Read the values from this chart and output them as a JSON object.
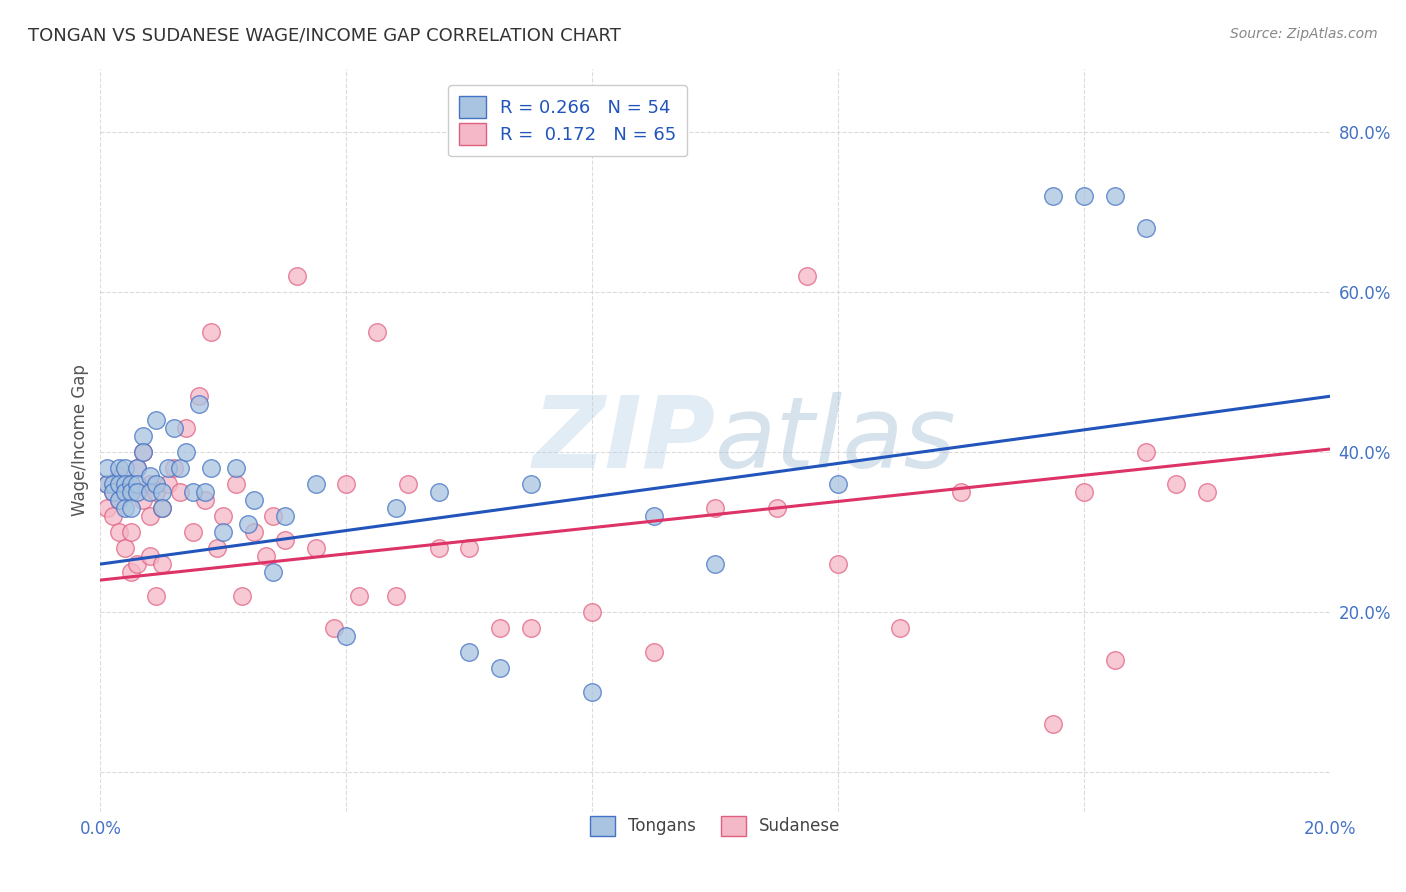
{
  "title": "TONGAN VS SUDANESE WAGE/INCOME GAP CORRELATION CHART",
  "source": "Source: ZipAtlas.com",
  "ylabel": "Wage/Income Gap",
  "xlim": [
    0.0,
    0.2
  ],
  "ylim": [
    -0.05,
    0.88
  ],
  "yticks": [
    0.0,
    0.2,
    0.4,
    0.6,
    0.8
  ],
  "xticks": [
    0.0,
    0.04,
    0.08,
    0.12,
    0.16,
    0.2
  ],
  "tongan_color": "#a8c4e0",
  "sudanese_color": "#f4b8c8",
  "tongan_edge_color": "#4472c4",
  "sudanese_edge_color": "#e06080",
  "tongan_line_color": "#2255bb",
  "sudanese_line_color": "#dd3366",
  "tongan_R": 0.266,
  "tongan_N": 54,
  "sudanese_R": 0.172,
  "sudanese_N": 65,
  "legend_label_tongan": "Tongans",
  "legend_label_sudanese": "Sudanese",
  "background_color": "#ffffff",
  "grid_color": "#cccccc",
  "tongan_x": [
    0.001,
    0.001,
    0.002,
    0.002,
    0.003,
    0.003,
    0.003,
    0.004,
    0.004,
    0.004,
    0.004,
    0.005,
    0.005,
    0.005,
    0.006,
    0.006,
    0.006,
    0.007,
    0.007,
    0.008,
    0.008,
    0.009,
    0.009,
    0.01,
    0.01,
    0.011,
    0.012,
    0.013,
    0.014,
    0.015,
    0.016,
    0.017,
    0.018,
    0.02,
    0.022,
    0.024,
    0.025,
    0.028,
    0.03,
    0.035,
    0.04,
    0.048,
    0.055,
    0.06,
    0.065,
    0.07,
    0.08,
    0.09,
    0.1,
    0.12,
    0.155,
    0.16,
    0.165,
    0.17
  ],
  "tongan_y": [
    0.36,
    0.38,
    0.36,
    0.35,
    0.38,
    0.36,
    0.34,
    0.38,
    0.36,
    0.35,
    0.33,
    0.36,
    0.35,
    0.33,
    0.38,
    0.36,
    0.35,
    0.42,
    0.4,
    0.37,
    0.35,
    0.44,
    0.36,
    0.35,
    0.33,
    0.38,
    0.43,
    0.38,
    0.4,
    0.35,
    0.46,
    0.35,
    0.38,
    0.3,
    0.38,
    0.31,
    0.34,
    0.25,
    0.32,
    0.36,
    0.17,
    0.33,
    0.35,
    0.15,
    0.13,
    0.36,
    0.1,
    0.32,
    0.26,
    0.36,
    0.72,
    0.72,
    0.72,
    0.68
  ],
  "sudanese_x": [
    0.001,
    0.001,
    0.002,
    0.002,
    0.003,
    0.003,
    0.003,
    0.004,
    0.004,
    0.005,
    0.005,
    0.005,
    0.006,
    0.006,
    0.007,
    0.007,
    0.008,
    0.008,
    0.008,
    0.009,
    0.009,
    0.01,
    0.01,
    0.011,
    0.012,
    0.013,
    0.014,
    0.015,
    0.016,
    0.017,
    0.018,
    0.019,
    0.02,
    0.022,
    0.023,
    0.025,
    0.027,
    0.028,
    0.03,
    0.032,
    0.035,
    0.038,
    0.04,
    0.042,
    0.045,
    0.048,
    0.05,
    0.055,
    0.06,
    0.065,
    0.07,
    0.08,
    0.09,
    0.1,
    0.11,
    0.115,
    0.12,
    0.13,
    0.14,
    0.155,
    0.16,
    0.165,
    0.17,
    0.175,
    0.18
  ],
  "sudanese_y": [
    0.36,
    0.33,
    0.35,
    0.32,
    0.37,
    0.34,
    0.3,
    0.35,
    0.28,
    0.36,
    0.3,
    0.25,
    0.38,
    0.26,
    0.4,
    0.34,
    0.36,
    0.32,
    0.27,
    0.35,
    0.22,
    0.33,
    0.26,
    0.36,
    0.38,
    0.35,
    0.43,
    0.3,
    0.47,
    0.34,
    0.55,
    0.28,
    0.32,
    0.36,
    0.22,
    0.3,
    0.27,
    0.32,
    0.29,
    0.62,
    0.28,
    0.18,
    0.36,
    0.22,
    0.55,
    0.22,
    0.36,
    0.28,
    0.28,
    0.18,
    0.18,
    0.2,
    0.15,
    0.33,
    0.33,
    0.62,
    0.26,
    0.18,
    0.35,
    0.06,
    0.35,
    0.14,
    0.4,
    0.36,
    0.35
  ],
  "tongan_intercept": 0.26,
  "tongan_slope": 1.05,
  "sudanese_intercept": 0.24,
  "sudanese_slope": 0.82
}
